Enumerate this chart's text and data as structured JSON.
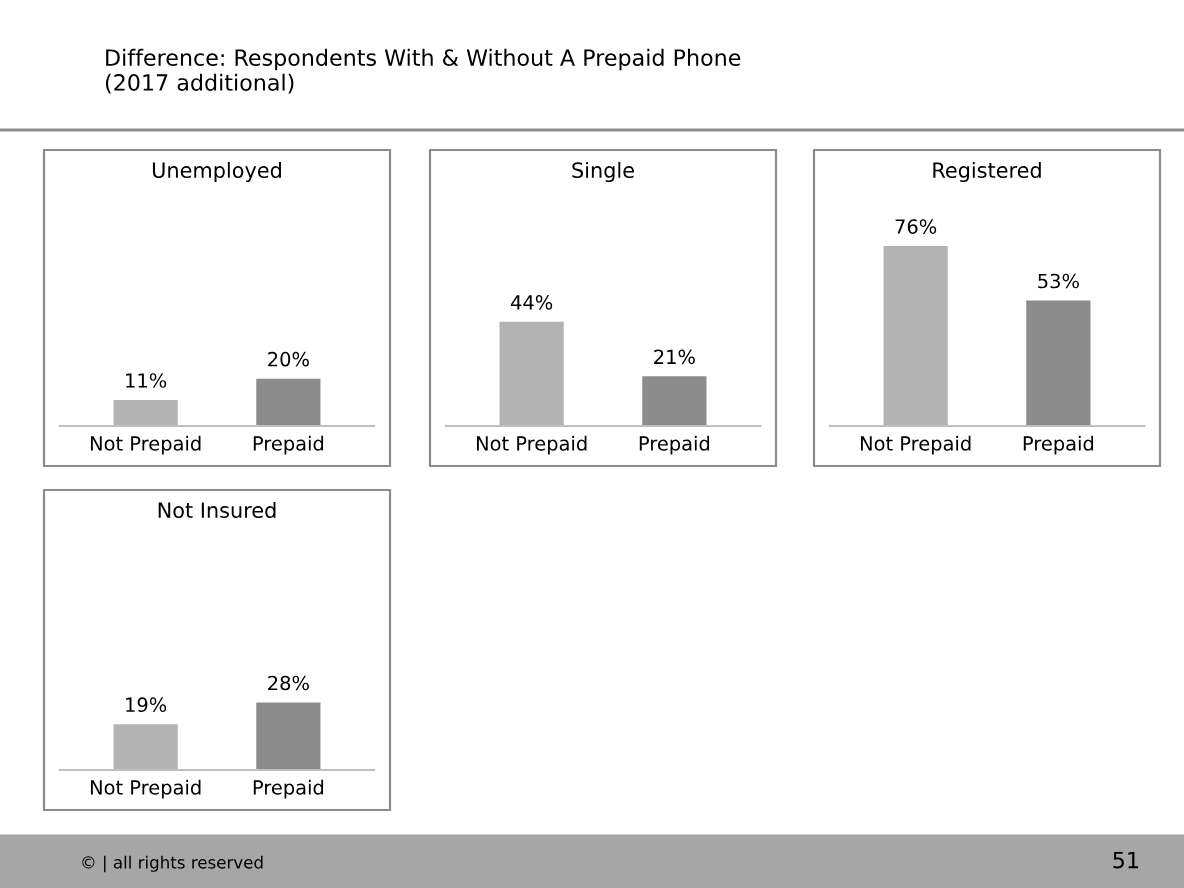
{
  "chart_data": [
    {
      "type": "bar",
      "title": "Unemployed",
      "categories": [
        "Not Prepaid",
        "Prepaid"
      ],
      "values": [
        11,
        20
      ],
      "colors": [
        "#b3b3b3",
        "#8c8c8c"
      ],
      "value_labels": [
        "11%",
        "20%"
      ]
    },
    {
      "type": "bar",
      "title": "Single",
      "categories": [
        "Not Prepaid",
        "Prepaid"
      ],
      "values": [
        44,
        21
      ],
      "colors": [
        "#b3b3b3",
        "#8c8c8c"
      ],
      "value_labels": [
        "44%",
        "21%"
      ]
    },
    {
      "type": "bar",
      "title": "Registered",
      "categories": [
        "Not Prepaid",
        "Prepaid"
      ],
      "values": [
        76,
        53
      ],
      "colors": [
        "#b3b3b3",
        "#8c8c8c"
      ],
      "value_labels": [
        "76%",
        "53%"
      ]
    },
    {
      "type": "bar",
      "title": "Not Insured",
      "categories": [
        "Not Prepaid",
        "Prepaid"
      ],
      "values": [
        19,
        28
      ],
      "colors": [
        "#b3b3b3",
        "#8c8c8c"
      ],
      "value_labels": [
        "19%",
        "28%"
      ]
    },
    {
      "type": "other",
      "title": "Difference: Respondents With & Without A Prepaid Phone\n(2017 additional)",
      "annotations": [
        "© | all rights reserved",
        "51"
      ]
    }
  ]
}
